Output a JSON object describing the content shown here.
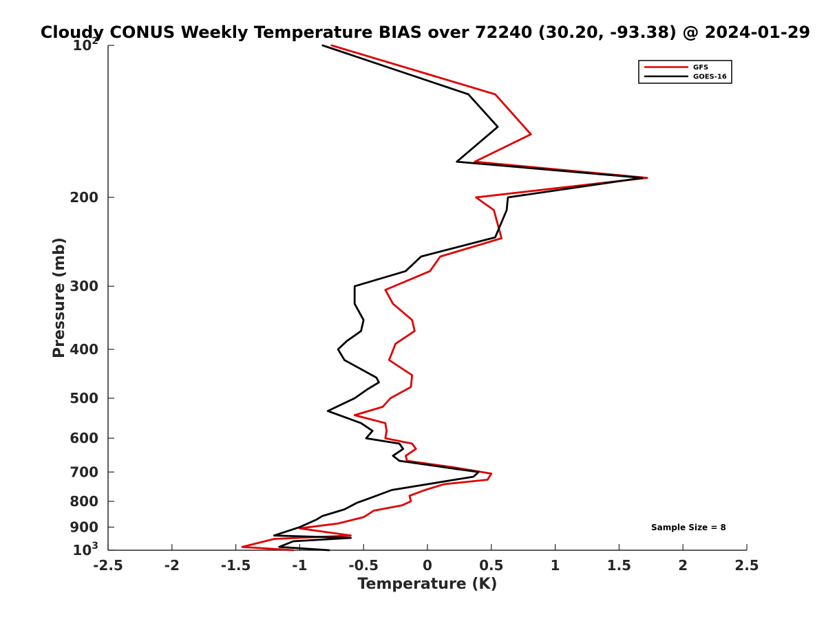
{
  "chart_data": {
    "type": "line",
    "title": "Cloudy CONUS Weekly Temperature BIAS over 72240 (30.20, -93.38) @ 2024-01-29",
    "xlabel": "Temperature (K)",
    "ylabel": "Pressure (mb)",
    "xlim": [
      -2.5,
      2.5
    ],
    "ylim": [
      100,
      1000
    ],
    "y_scale": "log",
    "y_reversed": true,
    "grid": false,
    "legend_position": "top-right",
    "x_ticks": [
      "-2.5",
      "-2",
      "-1.5",
      "-1",
      "-0.5",
      "0",
      "0.5",
      "1",
      "1.5",
      "2",
      "2.5"
    ],
    "y_ticks": [
      {
        "value": 100,
        "base": "10",
        "exp": "2"
      },
      {
        "value": 200,
        "label": "200"
      },
      {
        "value": 300,
        "label": "300"
      },
      {
        "value": 400,
        "label": "400"
      },
      {
        "value": 500,
        "label": "500"
      },
      {
        "value": 600,
        "label": "600"
      },
      {
        "value": 700,
        "label": "700"
      },
      {
        "value": 800,
        "label": "800"
      },
      {
        "value": 900,
        "label": "900"
      },
      {
        "value": 1000,
        "base": "10",
        "exp": "3"
      }
    ],
    "annotation": "Sample Size = 8",
    "series": [
      {
        "name": "GFS",
        "color": "#e00000",
        "points": [
          [
            -0.75,
            100
          ],
          [
            0.53,
            125
          ],
          [
            0.81,
            150
          ],
          [
            0.37,
            170
          ],
          [
            1.72,
            183
          ],
          [
            0.38,
            200
          ],
          [
            0.52,
            212
          ],
          [
            0.58,
            241
          ],
          [
            0.1,
            262
          ],
          [
            0.02,
            280
          ],
          [
            -0.33,
            305
          ],
          [
            -0.27,
            325
          ],
          [
            -0.12,
            350
          ],
          [
            -0.1,
            368
          ],
          [
            -0.25,
            390
          ],
          [
            -0.3,
            420
          ],
          [
            -0.12,
            450
          ],
          [
            -0.13,
            475
          ],
          [
            -0.29,
            500
          ],
          [
            -0.35,
            520
          ],
          [
            -0.57,
            540
          ],
          [
            -0.33,
            560
          ],
          [
            -0.32,
            580
          ],
          [
            -0.33,
            600
          ],
          [
            -0.12,
            615
          ],
          [
            -0.09,
            630
          ],
          [
            -0.17,
            650
          ],
          [
            -0.16,
            665
          ],
          [
            0.2,
            685
          ],
          [
            0.5,
            705
          ],
          [
            0.47,
            725
          ],
          [
            0.13,
            740
          ],
          [
            -0.02,
            760
          ],
          [
            -0.14,
            780
          ],
          [
            -0.13,
            800
          ],
          [
            -0.2,
            815
          ],
          [
            -0.42,
            835
          ],
          [
            -0.5,
            860
          ],
          [
            -0.7,
            885
          ],
          [
            -1.0,
            905
          ],
          [
            -0.6,
            935
          ],
          [
            -1.2,
            950
          ],
          [
            -1.45,
            985
          ],
          [
            -1.05,
            1000
          ]
        ]
      },
      {
        "name": "GOES-16",
        "color": "#000000",
        "points": [
          [
            -0.82,
            100
          ],
          [
            0.32,
            125
          ],
          [
            0.55,
            145
          ],
          [
            0.23,
            170
          ],
          [
            1.68,
            183
          ],
          [
            0.63,
            200
          ],
          [
            0.62,
            212
          ],
          [
            0.53,
            240
          ],
          [
            -0.05,
            262
          ],
          [
            -0.17,
            280
          ],
          [
            -0.57,
            300
          ],
          [
            -0.57,
            325
          ],
          [
            -0.5,
            350
          ],
          [
            -0.52,
            368
          ],
          [
            -0.63,
            385
          ],
          [
            -0.7,
            400
          ],
          [
            -0.65,
            420
          ],
          [
            -0.4,
            455
          ],
          [
            -0.38,
            465
          ],
          [
            -0.47,
            480
          ],
          [
            -0.57,
            500
          ],
          [
            -0.78,
            530
          ],
          [
            -0.52,
            560
          ],
          [
            -0.43,
            580
          ],
          [
            -0.48,
            600
          ],
          [
            -0.22,
            615
          ],
          [
            -0.19,
            630
          ],
          [
            -0.27,
            650
          ],
          [
            -0.22,
            665
          ],
          [
            0.22,
            690
          ],
          [
            0.4,
            700
          ],
          [
            0.36,
            715
          ],
          [
            -0.28,
            760
          ],
          [
            -0.46,
            790
          ],
          [
            -0.55,
            805
          ],
          [
            -0.65,
            830
          ],
          [
            -0.82,
            855
          ],
          [
            -0.87,
            870
          ],
          [
            -1.0,
            900
          ],
          [
            -1.2,
            935
          ],
          [
            -0.6,
            945
          ],
          [
            -1.05,
            960
          ],
          [
            -1.16,
            985
          ],
          [
            -0.77,
            1000
          ]
        ]
      }
    ]
  }
}
